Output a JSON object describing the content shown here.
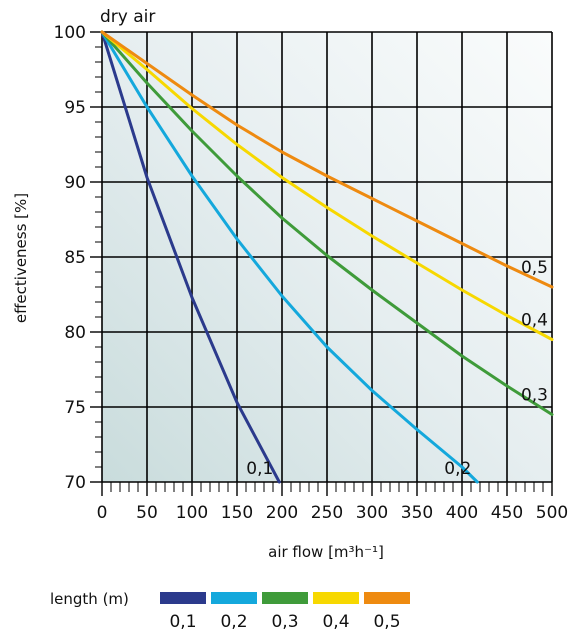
{
  "chart_data": {
    "type": "line",
    "title": "",
    "annotation": "dry air",
    "xlabel": "air flow [m³h⁻¹]",
    "ylabel": "effectiveness [%]",
    "xlim": [
      0,
      500
    ],
    "ylim": [
      70,
      100
    ],
    "xticks": [
      "0",
      "50",
      "100",
      "150",
      "200",
      "250",
      "300",
      "350",
      "400",
      "450",
      "500"
    ],
    "yticks": [
      "70",
      "75",
      "80",
      "85",
      "90",
      "95",
      "100"
    ],
    "grid": true,
    "legend": {
      "title": "length (m)",
      "placement": "bottom"
    },
    "series": [
      {
        "name": "0,1",
        "color": "#2b3a8c",
        "x": [
          0,
          50,
          100,
          150,
          197
        ],
        "y": [
          100,
          90.3,
          82.3,
          75.3,
          70
        ]
      },
      {
        "name": "0,2",
        "color": "#14a8dc",
        "x": [
          0,
          50,
          100,
          150,
          200,
          250,
          300,
          350,
          400,
          417
        ],
        "y": [
          100,
          95.0,
          90.4,
          86.2,
          82.4,
          79.0,
          76.1,
          73.5,
          71.0,
          70
        ]
      },
      {
        "name": "0,3",
        "color": "#3f9b3a",
        "x": [
          0,
          50,
          100,
          150,
          200,
          250,
          300,
          350,
          400,
          450,
          500
        ],
        "y": [
          100,
          96.6,
          93.4,
          90.4,
          87.6,
          85.1,
          82.8,
          80.6,
          78.4,
          76.4,
          74.5
        ]
      },
      {
        "name": "0,4",
        "color": "#f7d800",
        "x": [
          0,
          50,
          100,
          150,
          200,
          250,
          300,
          350,
          400,
          450,
          500
        ],
        "y": [
          100,
          97.5,
          94.9,
          92.5,
          90.3,
          88.3,
          86.4,
          84.6,
          82.8,
          81.1,
          79.5
        ]
      },
      {
        "name": "0,5",
        "color": "#ee8a10",
        "x": [
          0,
          50,
          100,
          150,
          200,
          250,
          300,
          350,
          400,
          450,
          500
        ],
        "y": [
          100,
          97.9,
          95.8,
          93.8,
          92.0,
          90.4,
          88.9,
          87.4,
          85.9,
          84.4,
          83.0
        ]
      }
    ]
  }
}
